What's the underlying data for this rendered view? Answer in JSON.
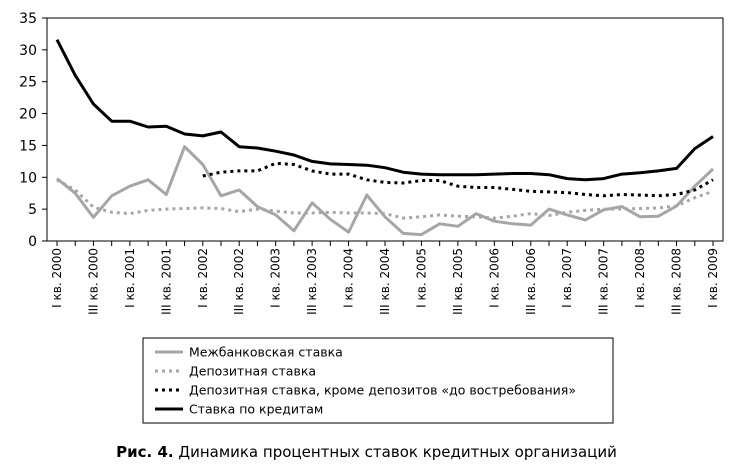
{
  "chart_data": {
    "type": "line",
    "title": "",
    "xlabel": "",
    "ylabel": "",
    "ylim": [
      0,
      35
    ],
    "yticks": [
      0,
      5,
      10,
      15,
      20,
      25,
      30,
      35
    ],
    "grid": false,
    "legend_position": "bottom-center",
    "x_tick_labels": [
      "I кв. 2000",
      "III кв. 2000",
      "I кв. 2001",
      "III кв. 2001",
      "I кв. 2002",
      "III кв. 2002",
      "I кв. 2003",
      "III кв. 2003",
      "I кв. 2004",
      "III кв. 2004",
      "I кв. 2005",
      "III кв. 2005",
      "I кв. 2006",
      "III кв. 2006",
      "I кв. 2007",
      "III кв. 2007",
      "I кв. 2008",
      "III кв. 2008",
      "I кв. 2009"
    ],
    "categories": [
      "I кв. 2000",
      "II кв. 2000",
      "III кв. 2000",
      "IV кв. 2000",
      "I кв. 2001",
      "II кв. 2001",
      "III кв. 2001",
      "IV кв. 2001",
      "I кв. 2002",
      "II кв. 2002",
      "III кв. 2002",
      "IV кв. 2002",
      "I кв. 2003",
      "II кв. 2003",
      "III кв. 2003",
      "IV кв. 2003",
      "I кв. 2004",
      "II кв. 2004",
      "III кв. 2004",
      "IV кв. 2004",
      "I кв. 2005",
      "II кв. 2005",
      "III кв. 2005",
      "IV кв. 2005",
      "I кв. 2006",
      "II кв. 2006",
      "III кв. 2006",
      "IV кв. 2006",
      "I кв. 2007",
      "II кв. 2007",
      "III кв. 2007",
      "IV кв. 2007",
      "I кв. 2008",
      "II кв. 2008",
      "III кв. 2008",
      "IV кв. 2008",
      "I кв. 2009"
    ],
    "series": [
      {
        "name": "Межбанковская ставка",
        "color": "#a6a6a6",
        "style": "solid",
        "values": [
          9.8,
          7.5,
          3.7,
          7.1,
          8.6,
          9.6,
          7.3,
          14.8,
          12.0,
          7.1,
          8.0,
          5.4,
          4.1,
          1.6,
          6.0,
          3.4,
          1.4,
          7.2,
          3.8,
          1.2,
          1.0,
          2.7,
          2.3,
          4.3,
          3.1,
          2.7,
          2.5,
          5.0,
          4.1,
          3.3,
          4.9,
          5.4,
          3.8,
          3.9,
          5.5,
          8.6,
          11.3
        ]
      },
      {
        "name": "Депозитная ставка",
        "color": "#a6a6a6",
        "style": "dotted",
        "values": [
          9.6,
          8.0,
          5.3,
          4.5,
          4.3,
          4.8,
          5.0,
          5.1,
          5.2,
          5.1,
          4.6,
          5.0,
          4.7,
          4.4,
          4.4,
          4.5,
          4.4,
          4.4,
          4.3,
          3.6,
          3.8,
          4.1,
          3.9,
          3.8,
          3.6,
          3.9,
          4.3,
          4.0,
          4.5,
          4.8,
          5.0,
          5.0,
          5.1,
          5.2,
          5.5,
          6.8,
          7.8
        ]
      },
      {
        "name": "Депозитная ставка, кроме депозитов «до востребования»",
        "color": "#000000",
        "style": "dotted",
        "values": [
          null,
          null,
          null,
          null,
          null,
          null,
          null,
          null,
          10.2,
          10.8,
          11.0,
          11.0,
          12.2,
          12.0,
          11.0,
          10.5,
          10.5,
          9.6,
          9.2,
          9.1,
          9.5,
          9.5,
          8.6,
          8.4,
          8.4,
          8.1,
          7.8,
          7.7,
          7.6,
          7.3,
          7.1,
          7.3,
          7.2,
          7.1,
          7.3,
          8.0,
          9.6
        ]
      },
      {
        "name": "Ставка по кредитам",
        "color": "#000000",
        "style": "solid",
        "values": [
          31.6,
          26.0,
          21.5,
          18.8,
          18.8,
          17.9,
          18.0,
          16.8,
          16.5,
          17.1,
          14.8,
          14.6,
          14.1,
          13.5,
          12.5,
          12.1,
          12.0,
          11.9,
          11.5,
          10.8,
          10.5,
          10.4,
          10.4,
          10.4,
          10.5,
          10.6,
          10.6,
          10.4,
          9.8,
          9.6,
          9.8,
          10.5,
          10.7,
          11.0,
          11.4,
          14.5,
          16.4
        ]
      }
    ]
  },
  "caption": {
    "label": "Рис. 4.",
    "text": " Динамика процентных ставок кредитных организаций"
  }
}
